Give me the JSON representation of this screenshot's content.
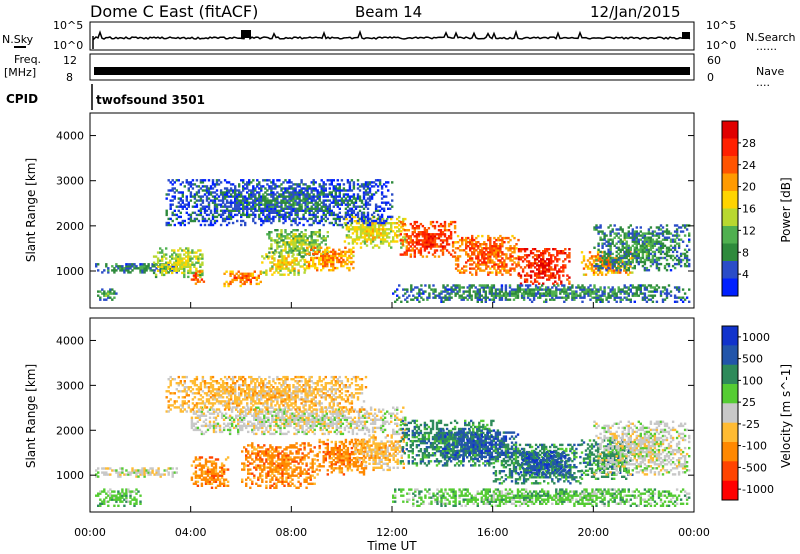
{
  "header": {
    "radar": "Dome C East (fitACF)",
    "beam": "Beam 14",
    "date": "12/Jan/2015"
  },
  "side_labels": {
    "nsky": "N.Sky",
    "freq": "Freq.",
    "mhz": "[MHz]",
    "cpid": "CPID",
    "nsearch": "N.Search",
    "nave": "Nave",
    "dots": "......",
    "dots_short": "...."
  },
  "panel_ticks": {
    "noise_left": [
      "10^5",
      "10^0"
    ],
    "noise_right": [
      "10^5",
      "10^0"
    ],
    "freq_left": [
      "12",
      "8"
    ],
    "freq_right": [
      "60",
      "0"
    ]
  },
  "cpid_text": "twofsound 3501",
  "colors": {
    "power": [
      "#0020ff",
      "#2a4cc8",
      "#2e8a3c",
      "#50b050",
      "#b8d830",
      "#ffd400",
      "#ff9a00",
      "#ff5400",
      "#ff2000",
      "#e00000"
    ],
    "velocity": [
      "#ff0000",
      "#ff4400",
      "#ff8800",
      "#ffbb33",
      "#c8c8c8",
      "#55cc33",
      "#2e8a5a",
      "#2255aa",
      "#1133cc"
    ]
  },
  "chart_data": [
    {
      "type": "heatmap",
      "name": "power",
      "ylabel": "Slant Range [km]",
      "x_range_hours": [
        0,
        24
      ],
      "ylim": [
        180,
        4500
      ],
      "y_ticks": [
        1000,
        2000,
        3000,
        4000
      ],
      "colorbar": {
        "label": "Power [dB]",
        "ticks": [
          "4",
          "8",
          "12",
          "16",
          "20",
          "24",
          "28"
        ],
        "range": [
          0,
          32
        ]
      },
      "blobs": [
        {
          "t": [
            0.2,
            1.0
          ],
          "r": [
            300,
            600
          ],
          "p": 10
        },
        {
          "t": [
            0.2,
            3.8
          ],
          "r": [
            950,
            1150
          ],
          "p": 9
        },
        {
          "t": [
            2.5,
            4.5
          ],
          "r": [
            850,
            1500
          ],
          "p": 16
        },
        {
          "t": [
            4.0,
            4.5
          ],
          "r": [
            700,
            1000
          ],
          "p": 26
        },
        {
          "t": [
            5.3,
            6.8
          ],
          "r": [
            650,
            1000
          ],
          "p": 24
        },
        {
          "t": [
            6.8,
            8.5
          ],
          "r": [
            900,
            1400
          ],
          "p": 18
        },
        {
          "t": [
            7.0,
            9.5
          ],
          "r": [
            1300,
            1900
          ],
          "p": 14
        },
        {
          "t": [
            8.5,
            10.5
          ],
          "r": [
            1000,
            1500
          ],
          "p": 22
        },
        {
          "t": [
            10.0,
            12.5
          ],
          "r": [
            1500,
            2200
          ],
          "p": 18
        },
        {
          "t": [
            12.3,
            14.5
          ],
          "r": [
            1300,
            2100
          ],
          "p": 27
        },
        {
          "t": [
            14.5,
            17.0
          ],
          "r": [
            900,
            1800
          ],
          "p": 25
        },
        {
          "t": [
            17.0,
            19.0
          ],
          "r": [
            700,
            1500
          ],
          "p": 29
        },
        {
          "t": [
            19.5,
            21.5
          ],
          "r": [
            900,
            1400
          ],
          "p": 22
        },
        {
          "t": [
            20.0,
            23.8
          ],
          "r": [
            1000,
            2000
          ],
          "p": 10
        },
        {
          "t": [
            12.0,
            23.8
          ],
          "r": [
            300,
            700
          ],
          "p": 9
        },
        {
          "t": [
            3.0,
            12.0
          ],
          "r": [
            2000,
            3000
          ],
          "p": 7
        }
      ]
    },
    {
      "type": "heatmap",
      "name": "velocity",
      "xlabel": "Time UT",
      "ylabel": "Slant Range [km]",
      "x_range_hours": [
        0,
        24
      ],
      "x_ticks": [
        "00:00",
        "04:00",
        "08:00",
        "12:00",
        "16:00",
        "20:00",
        "00:00"
      ],
      "ylim": [
        180,
        4500
      ],
      "y_ticks": [
        1000,
        2000,
        3000,
        4000
      ],
      "colorbar": {
        "label": "Velocity [m s^-1]",
        "ticks": [
          "1000",
          "500",
          "100",
          "25",
          "-25",
          "-100",
          "-500",
          "-1000"
        ]
      },
      "blobs": [
        {
          "t": [
            0.2,
            3.5
          ],
          "r": [
            950,
            1150
          ],
          "c": 4
        },
        {
          "t": [
            0.2,
            2.0
          ],
          "r": [
            300,
            700
          ],
          "c": 5
        },
        {
          "t": [
            4.0,
            5.5
          ],
          "r": [
            700,
            1400
          ],
          "c": 2
        },
        {
          "t": [
            6.0,
            9.0
          ],
          "r": [
            700,
            1700
          ],
          "c": 2
        },
        {
          "t": [
            9.0,
            11.0
          ],
          "r": [
            1000,
            1800
          ],
          "c": 2
        },
        {
          "t": [
            4.0,
            12.5
          ],
          "r": [
            1900,
            2500
          ],
          "c": 4
        },
        {
          "t": [
            10.5,
            12.5
          ],
          "r": [
            1100,
            1900
          ],
          "c": 3
        },
        {
          "t": [
            12.3,
            16.0
          ],
          "r": [
            1200,
            2200
          ],
          "c": 6
        },
        {
          "t": [
            14.0,
            17.0
          ],
          "r": [
            1300,
            2000
          ],
          "c": 7
        },
        {
          "t": [
            16.0,
            19.5
          ],
          "r": [
            800,
            1700
          ],
          "c": 6
        },
        {
          "t": [
            17.0,
            19.0
          ],
          "r": [
            1000,
            1500
          ],
          "c": 7
        },
        {
          "t": [
            19.5,
            21.5
          ],
          "r": [
            900,
            1800
          ],
          "c": 6
        },
        {
          "t": [
            20.0,
            23.8
          ],
          "r": [
            1000,
            2200
          ],
          "c": 4
        },
        {
          "t": [
            12.0,
            23.8
          ],
          "r": [
            300,
            700
          ],
          "c": 5
        },
        {
          "t": [
            3.0,
            11.0
          ],
          "r": [
            2400,
            3200
          ],
          "c": 3
        }
      ]
    }
  ]
}
